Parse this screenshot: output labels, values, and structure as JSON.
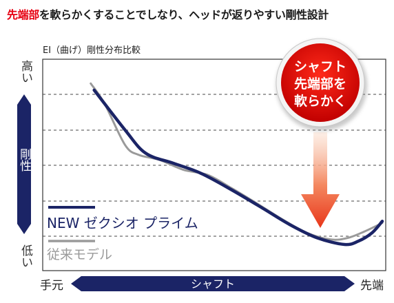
{
  "headline": {
    "highlight": "先端部",
    "rest": "を軟らかくすることでしなり、ヘッドが返りやすい剛性設計"
  },
  "colors": {
    "accent_red": "#e60012",
    "navy": "#1b2466",
    "gray": "#9a9a9a"
  },
  "chart_data": {
    "type": "line",
    "title": "EI（曲げ）剛性分布比較",
    "ylabel": "剛性",
    "y_high_label": "高い",
    "y_low_label": "低い",
    "xlabel": "シャフト",
    "x_left_label": "手元",
    "x_right_label": "先端",
    "grid": "dashed horizontal",
    "legend_position": "bottom-left",
    "series": [
      {
        "name": "NEW ゼクシオ プライム",
        "color": "#1b2466",
        "points": [
          [
            0.15,
            0.93
          ],
          [
            0.24,
            0.69
          ],
          [
            0.3,
            0.55
          ],
          [
            0.38,
            0.49
          ],
          [
            0.46,
            0.43
          ],
          [
            0.55,
            0.33
          ],
          [
            0.64,
            0.22
          ],
          [
            0.72,
            0.12
          ],
          [
            0.8,
            0.04
          ],
          [
            0.88,
            0.0
          ],
          [
            0.92,
            0.02
          ],
          [
            0.96,
            0.07
          ],
          [
            0.99,
            0.14
          ]
        ]
      },
      {
        "name": "従来モデル",
        "color": "#9a9a9a",
        "points": [
          [
            0.14,
            0.97
          ],
          [
            0.18,
            0.85
          ],
          [
            0.24,
            0.6
          ],
          [
            0.28,
            0.54
          ],
          [
            0.34,
            0.51
          ],
          [
            0.41,
            0.45
          ],
          [
            0.48,
            0.42
          ],
          [
            0.55,
            0.34
          ],
          [
            0.63,
            0.24
          ],
          [
            0.7,
            0.15
          ],
          [
            0.77,
            0.07
          ],
          [
            0.84,
            0.03
          ],
          [
            0.89,
            0.04
          ],
          [
            0.94,
            0.08
          ],
          [
            0.99,
            0.13
          ]
        ]
      }
    ],
    "callout": {
      "lines": [
        "シャフト",
        "先端部を",
        "軟らかく"
      ]
    }
  }
}
